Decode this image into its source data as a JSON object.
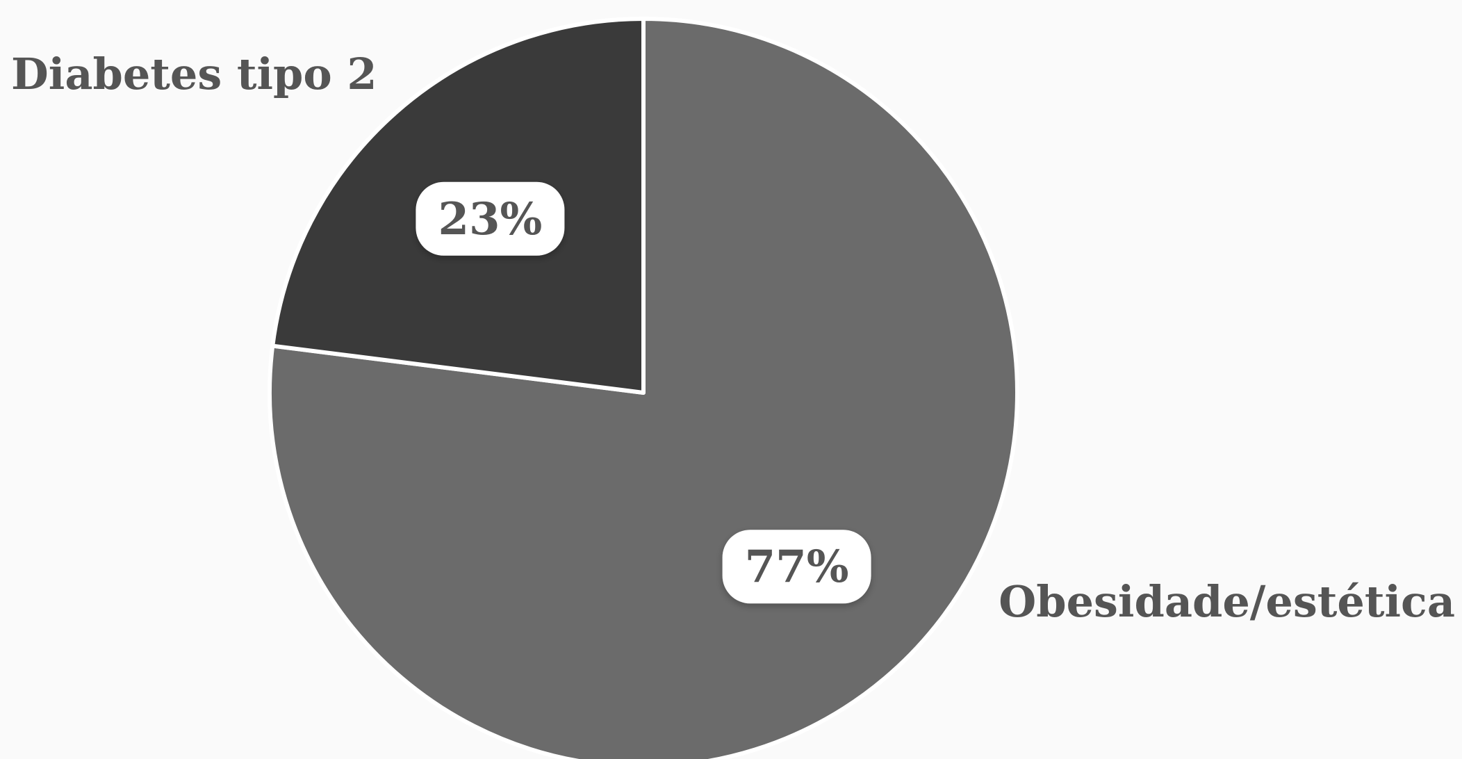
{
  "colors": {
    "background": "#fafafa",
    "label_text": "#555555",
    "badge_fill": "#ffffff",
    "slice_stroke": "#ffffff"
  },
  "chart_data": {
    "type": "pie",
    "title": "",
    "legend": "none",
    "slices": [
      {
        "label": "Obesidade/estética",
        "value": 77,
        "display": "77%",
        "color": "#6b6b6b"
      },
      {
        "label": "Diabetes tipo 2",
        "value": 23,
        "display": "23%",
        "color": "#3a3a3a"
      }
    ]
  }
}
